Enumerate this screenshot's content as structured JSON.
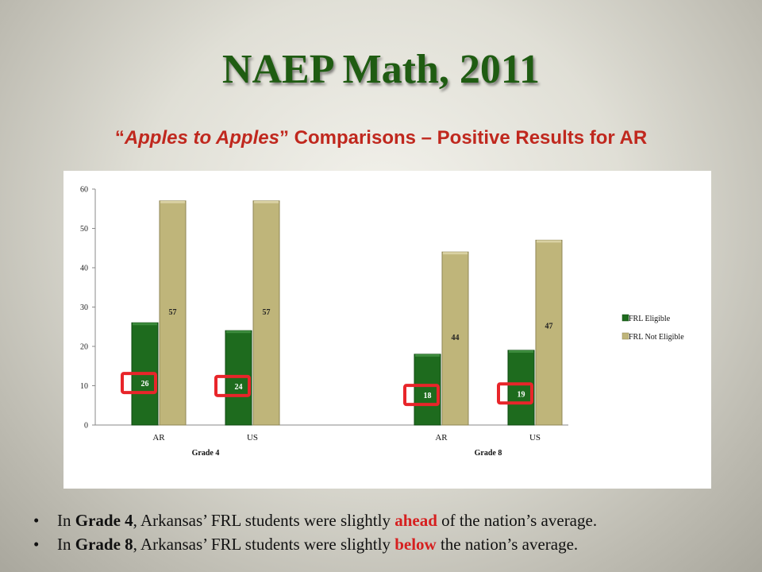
{
  "slide": {
    "title": "NAEP Math, 2011",
    "subtitle_quote_open": "“",
    "subtitle_italic": "Apples to Apples",
    "subtitle_rest": "” Comparisons – Positive Results for AR"
  },
  "chart_data": {
    "type": "bar",
    "categories": [
      "AR",
      "US",
      "AR",
      "US"
    ],
    "groups": [
      {
        "label": "Grade 4",
        "categories": [
          "AR",
          "US"
        ]
      },
      {
        "label": "Grade 8",
        "categories": [
          "AR",
          "US"
        ]
      }
    ],
    "series": [
      {
        "name": "FRL Eligible",
        "color": "#1e6b1e",
        "values": [
          26,
          24,
          18,
          19
        ]
      },
      {
        "name": "FRL Not Eligible",
        "color": "#bfb57a",
        "values": [
          57,
          57,
          44,
          47
        ]
      }
    ],
    "ylim": [
      0,
      60
    ],
    "yticks": [
      0,
      10,
      20,
      30,
      40,
      50,
      60
    ],
    "legend_position": "right",
    "highlight_series": "FRL Eligible",
    "highlight_color": "#e8252a"
  },
  "bullets": [
    {
      "symbol": "•",
      "pre": "In ",
      "bold": "Grade 4",
      "mid": ", Arkansas’ FRL students were slightly ",
      "emph": "ahead",
      "post": " of the nation’s average."
    },
    {
      "symbol": "•",
      "pre": "In ",
      "bold": "Grade 8",
      "mid": ", Arkansas’ FRL students were slightly ",
      "emph": "below",
      "post": " the nation’s average."
    }
  ]
}
